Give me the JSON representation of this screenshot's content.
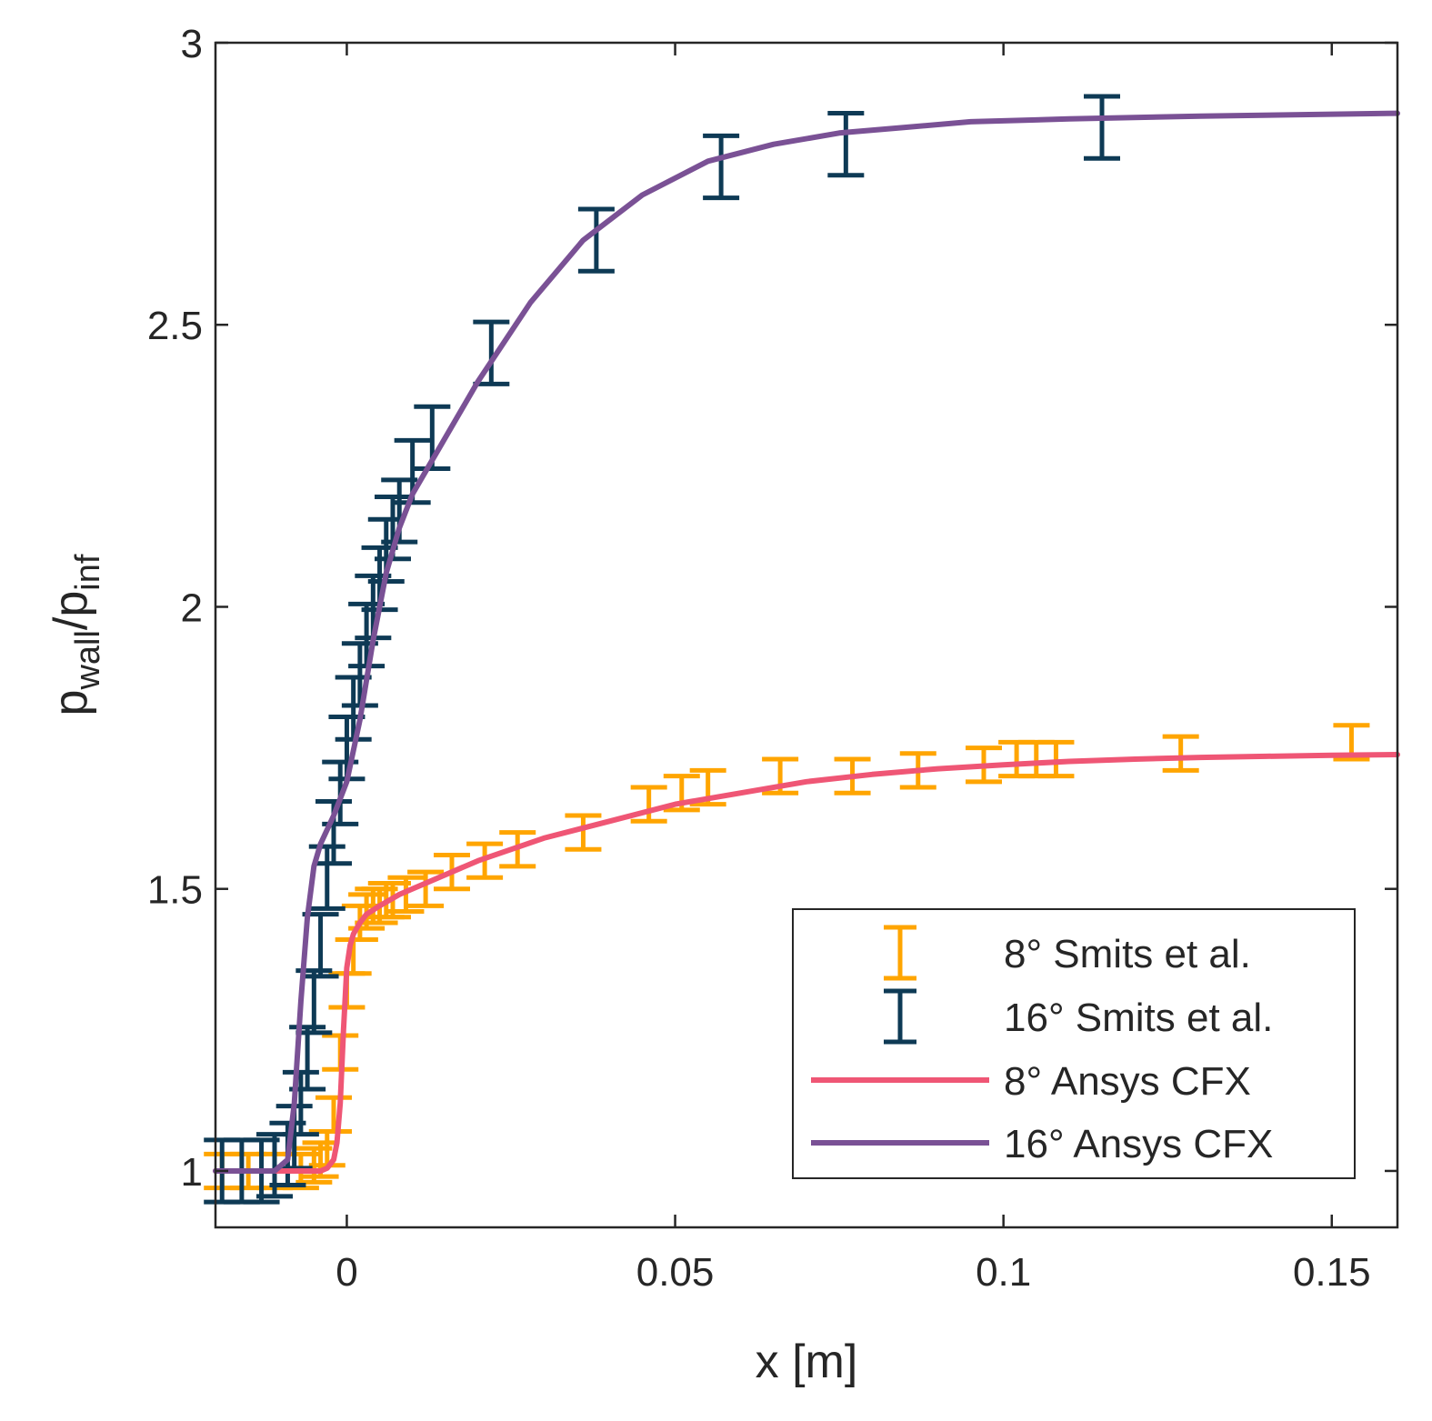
{
  "chart_data": {
    "type": "line",
    "title": "",
    "xlabel": "x [m]",
    "ylabel": {
      "base1": "p",
      "sub1": "wall",
      "sep": "/",
      "base2": "p",
      "sub2": "inf"
    },
    "xlim": [
      -0.02,
      0.16
    ],
    "ylim": [
      0.9,
      3.0
    ],
    "xticks": [
      0,
      0.05,
      0.1,
      0.15
    ],
    "xtick_labels": [
      "0",
      "0.05",
      "0.1",
      "0.15"
    ],
    "yticks": [
      1,
      1.5,
      2,
      2.5,
      3
    ],
    "ytick_labels": [
      "1",
      "1.5",
      "2",
      "2.5",
      "3"
    ],
    "grid": false,
    "legend_position": "bottom-right",
    "legend": [
      {
        "label": "8° Smits et al.",
        "kind": "errorbar",
        "color": "#FFA500"
      },
      {
        "label": "16° Smits et al.",
        "kind": "errorbar",
        "color": "#0E3A55"
      },
      {
        "label": "8° Ansys CFX",
        "kind": "line",
        "color": "#EF5675"
      },
      {
        "label": "16° Ansys CFX",
        "kind": "line",
        "color": "#7A5195"
      }
    ],
    "series": [
      {
        "name": "8° Smits et al.",
        "kind": "errorbar",
        "color": "#FFA500",
        "x": [
          -0.019,
          -0.015,
          -0.011,
          -0.007,
          -0.005,
          -0.004,
          -0.003,
          -0.002,
          -0.001,
          0.0,
          0.001,
          0.002,
          0.003,
          0.004,
          0.005,
          0.006,
          0.007,
          0.009,
          0.012,
          0.016,
          0.021,
          0.026,
          0.036,
          0.046,
          0.051,
          0.055,
          0.066,
          0.077,
          0.087,
          0.097,
          0.102,
          0.105,
          0.108,
          0.127,
          0.153
        ],
        "y": [
          1.0,
          1.0,
          1.0,
          1.0,
          1.01,
          1.02,
          1.04,
          1.1,
          1.21,
          1.32,
          1.38,
          1.44,
          1.46,
          1.47,
          1.47,
          1.48,
          1.48,
          1.49,
          1.5,
          1.53,
          1.55,
          1.57,
          1.6,
          1.65,
          1.67,
          1.68,
          1.7,
          1.7,
          1.71,
          1.72,
          1.73,
          1.73,
          1.73,
          1.74,
          1.76
        ],
        "err": 0.03
      },
      {
        "name": "16° Smits et al.",
        "kind": "errorbar",
        "color": "#0E3A55",
        "x": [
          -0.019,
          -0.016,
          -0.013,
          -0.011,
          -0.009,
          -0.008,
          -0.007,
          -0.006,
          -0.005,
          -0.004,
          -0.003,
          -0.002,
          -0.001,
          0.0,
          0.001,
          0.002,
          0.003,
          0.004,
          0.005,
          0.006,
          0.007,
          0.008,
          0.01,
          0.013,
          0.022,
          0.038,
          0.057,
          0.076,
          0.115
        ],
        "y": [
          1.0,
          1.0,
          1.0,
          1.01,
          1.03,
          1.06,
          1.12,
          1.2,
          1.3,
          1.4,
          1.52,
          1.6,
          1.67,
          1.75,
          1.82,
          1.88,
          1.95,
          2.0,
          2.05,
          2.1,
          2.14,
          2.17,
          2.24,
          2.3,
          2.45,
          2.65,
          2.78,
          2.82,
          2.85
        ],
        "err": 0.055
      },
      {
        "name": "8° Ansys CFX",
        "kind": "line",
        "color": "#EF5675",
        "x": [
          -0.02,
          -0.008,
          -0.004,
          -0.003,
          -0.002,
          -0.0015,
          -0.001,
          -0.0005,
          0.0,
          0.0005,
          0.001,
          0.002,
          0.003,
          0.005,
          0.008,
          0.012,
          0.02,
          0.03,
          0.04,
          0.05,
          0.06,
          0.07,
          0.08,
          0.09,
          0.1,
          0.11,
          0.12,
          0.13,
          0.14,
          0.15,
          0.16
        ],
        "y": [
          1.0,
          1.0,
          1.0,
          1.005,
          1.02,
          1.05,
          1.12,
          1.25,
          1.36,
          1.4,
          1.42,
          1.44,
          1.455,
          1.47,
          1.49,
          1.51,
          1.55,
          1.59,
          1.62,
          1.65,
          1.67,
          1.69,
          1.703,
          1.713,
          1.72,
          1.726,
          1.73,
          1.733,
          1.735,
          1.737,
          1.738
        ]
      },
      {
        "name": "16° Ansys CFX",
        "kind": "line",
        "color": "#7A5195",
        "x": [
          -0.02,
          -0.011,
          -0.009,
          -0.008,
          -0.007,
          -0.006,
          -0.005,
          -0.004,
          -0.002,
          0.0,
          0.002,
          0.004,
          0.006,
          0.008,
          0.01,
          0.014,
          0.02,
          0.028,
          0.036,
          0.045,
          0.055,
          0.065,
          0.075,
          0.085,
          0.095,
          0.11,
          0.13,
          0.16
        ],
        "y": [
          1.0,
          1.0,
          1.02,
          1.12,
          1.3,
          1.45,
          1.54,
          1.58,
          1.63,
          1.69,
          1.8,
          1.94,
          2.06,
          2.14,
          2.2,
          2.28,
          2.4,
          2.54,
          2.65,
          2.73,
          2.79,
          2.82,
          2.84,
          2.85,
          2.86,
          2.865,
          2.87,
          2.875
        ]
      }
    ]
  }
}
